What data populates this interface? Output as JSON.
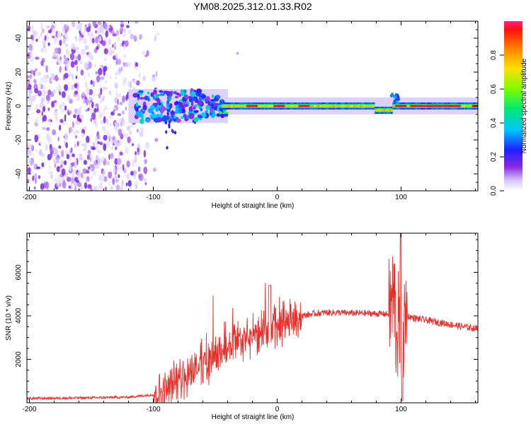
{
  "title": "YM08.2025.312.01.33.R02",
  "chart_data": [
    {
      "type": "heatmap",
      "xlabel": "Height of straight line (km)",
      "ylabel": "Frequency (Hz)",
      "xlim": [
        -202,
        162
      ],
      "ylim": [
        -50,
        50
      ],
      "x_ticks": [
        -200,
        -100,
        0,
        100
      ],
      "y_ticks": [
        -40,
        -20,
        0,
        20,
        40
      ],
      "grid": false,
      "colorbar": {
        "label": "Normalized spectral amplitude",
        "range": [
          0,
          1
        ],
        "ticks": [
          0.0,
          0.2,
          0.4,
          0.6,
          0.8
        ]
      },
      "description_values": {
        "noise_region_x": [
          -202,
          -95
        ],
        "signal_band_center_hz": 0,
        "strong_peaks_x": [
          -22,
          0,
          20,
          98,
          110,
          130,
          160
        ]
      }
    },
    {
      "type": "line",
      "xlabel": "Height of straight line (km)",
      "ylabel": "SNR (10 * v/v)",
      "xlim": [
        -202,
        162
      ],
      "ylim": [
        0,
        7800
      ],
      "x_ticks": [
        -200,
        -100,
        0,
        100
      ],
      "y_ticks": [
        2000,
        4000,
        6000
      ],
      "series": [
        {
          "name": "SNR",
          "color": "#e8302a",
          "x": [
            -202,
            -180,
            -150,
            -120,
            -100,
            -90,
            -80,
            -70,
            -60,
            -50,
            -40,
            -30,
            -20,
            -10,
            0,
            10,
            20,
            30,
            40,
            50,
            60,
            70,
            80,
            90,
            95,
            100,
            105,
            110,
            120,
            130,
            140,
            150,
            162
          ],
          "y": [
            200,
            210,
            230,
            260,
            380,
            600,
            1000,
            1500,
            1800,
            2100,
            2500,
            2800,
            3000,
            3200,
            3500,
            3800,
            4000,
            4100,
            4150,
            4150,
            4120,
            4120,
            4100,
            4080,
            5000,
            7800,
            4000,
            3900,
            3800,
            3700,
            3600,
            3500,
            3400
          ]
        }
      ]
    }
  ]
}
